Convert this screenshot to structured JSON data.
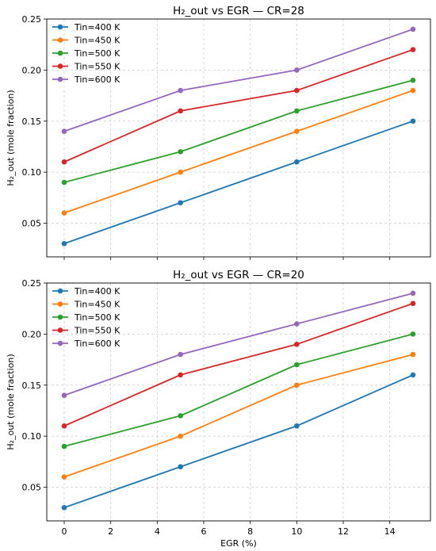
{
  "chart_data": [
    {
      "type": "line",
      "title": "H₂_out vs EGR — CR=28",
      "xlabel": "",
      "ylabel": "H₂_out (mole fraction)",
      "x": [
        0,
        5,
        10,
        15
      ],
      "xlim": [
        -0.75,
        15.75
      ],
      "ylim": [
        0.017,
        0.25
      ],
      "xticks": [
        0,
        2,
        4,
        6,
        8,
        10,
        12,
        14
      ],
      "yticks": [
        0.05,
        0.1,
        0.15,
        0.2,
        0.25
      ],
      "ytick_labels": [
        "0.05",
        "0.10",
        "0.15",
        "0.20",
        "0.25"
      ],
      "show_xtick_labels": false,
      "grid": true,
      "legend_position": "top-left",
      "series": [
        {
          "name": "Tin=400 K",
          "color": "#1f77b4",
          "values": [
            0.03,
            0.07,
            0.11,
            0.15
          ]
        },
        {
          "name": "Tin=450 K",
          "color": "#ff7f0e",
          "values": [
            0.06,
            0.1,
            0.14,
            0.18
          ]
        },
        {
          "name": "Tin=500 K",
          "color": "#2ca02c",
          "values": [
            0.09,
            0.12,
            0.16,
            0.19
          ]
        },
        {
          "name": "Tin=550 K",
          "color": "#d62728",
          "values": [
            0.11,
            0.16,
            0.18,
            0.22
          ]
        },
        {
          "name": "Tin=600 K",
          "color": "#9467bd",
          "values": [
            0.14,
            0.18,
            0.2,
            0.24
          ]
        }
      ]
    },
    {
      "type": "line",
      "title": "H₂_out vs EGR — CR=20",
      "xlabel": "EGR (%)",
      "ylabel": "H₂_out (mole fraction)",
      "x": [
        0,
        5,
        10,
        15
      ],
      "xlim": [
        -0.75,
        15.75
      ],
      "ylim": [
        0.017,
        0.25
      ],
      "xticks": [
        0,
        2,
        4,
        6,
        8,
        10,
        12,
        14
      ],
      "xtick_labels": [
        "0",
        "2",
        "4",
        "6",
        "8",
        "10",
        "12",
        "14"
      ],
      "yticks": [
        0.05,
        0.1,
        0.15,
        0.2,
        0.25
      ],
      "ytick_labels": [
        "0.05",
        "0.10",
        "0.15",
        "0.20",
        "0.25"
      ],
      "show_xtick_labels": true,
      "grid": true,
      "legend_position": "top-left",
      "series": [
        {
          "name": "Tin=400 K",
          "color": "#1f77b4",
          "values": [
            0.03,
            0.07,
            0.11,
            0.16
          ]
        },
        {
          "name": "Tin=450 K",
          "color": "#ff7f0e",
          "values": [
            0.06,
            0.1,
            0.15,
            0.18
          ]
        },
        {
          "name": "Tin=500 K",
          "color": "#2ca02c",
          "values": [
            0.09,
            0.12,
            0.17,
            0.2
          ]
        },
        {
          "name": "Tin=550 K",
          "color": "#d62728",
          "values": [
            0.11,
            0.16,
            0.19,
            0.23
          ]
        },
        {
          "name": "Tin=600 K",
          "color": "#9467bd",
          "values": [
            0.14,
            0.18,
            0.21,
            0.24
          ]
        }
      ]
    }
  ]
}
